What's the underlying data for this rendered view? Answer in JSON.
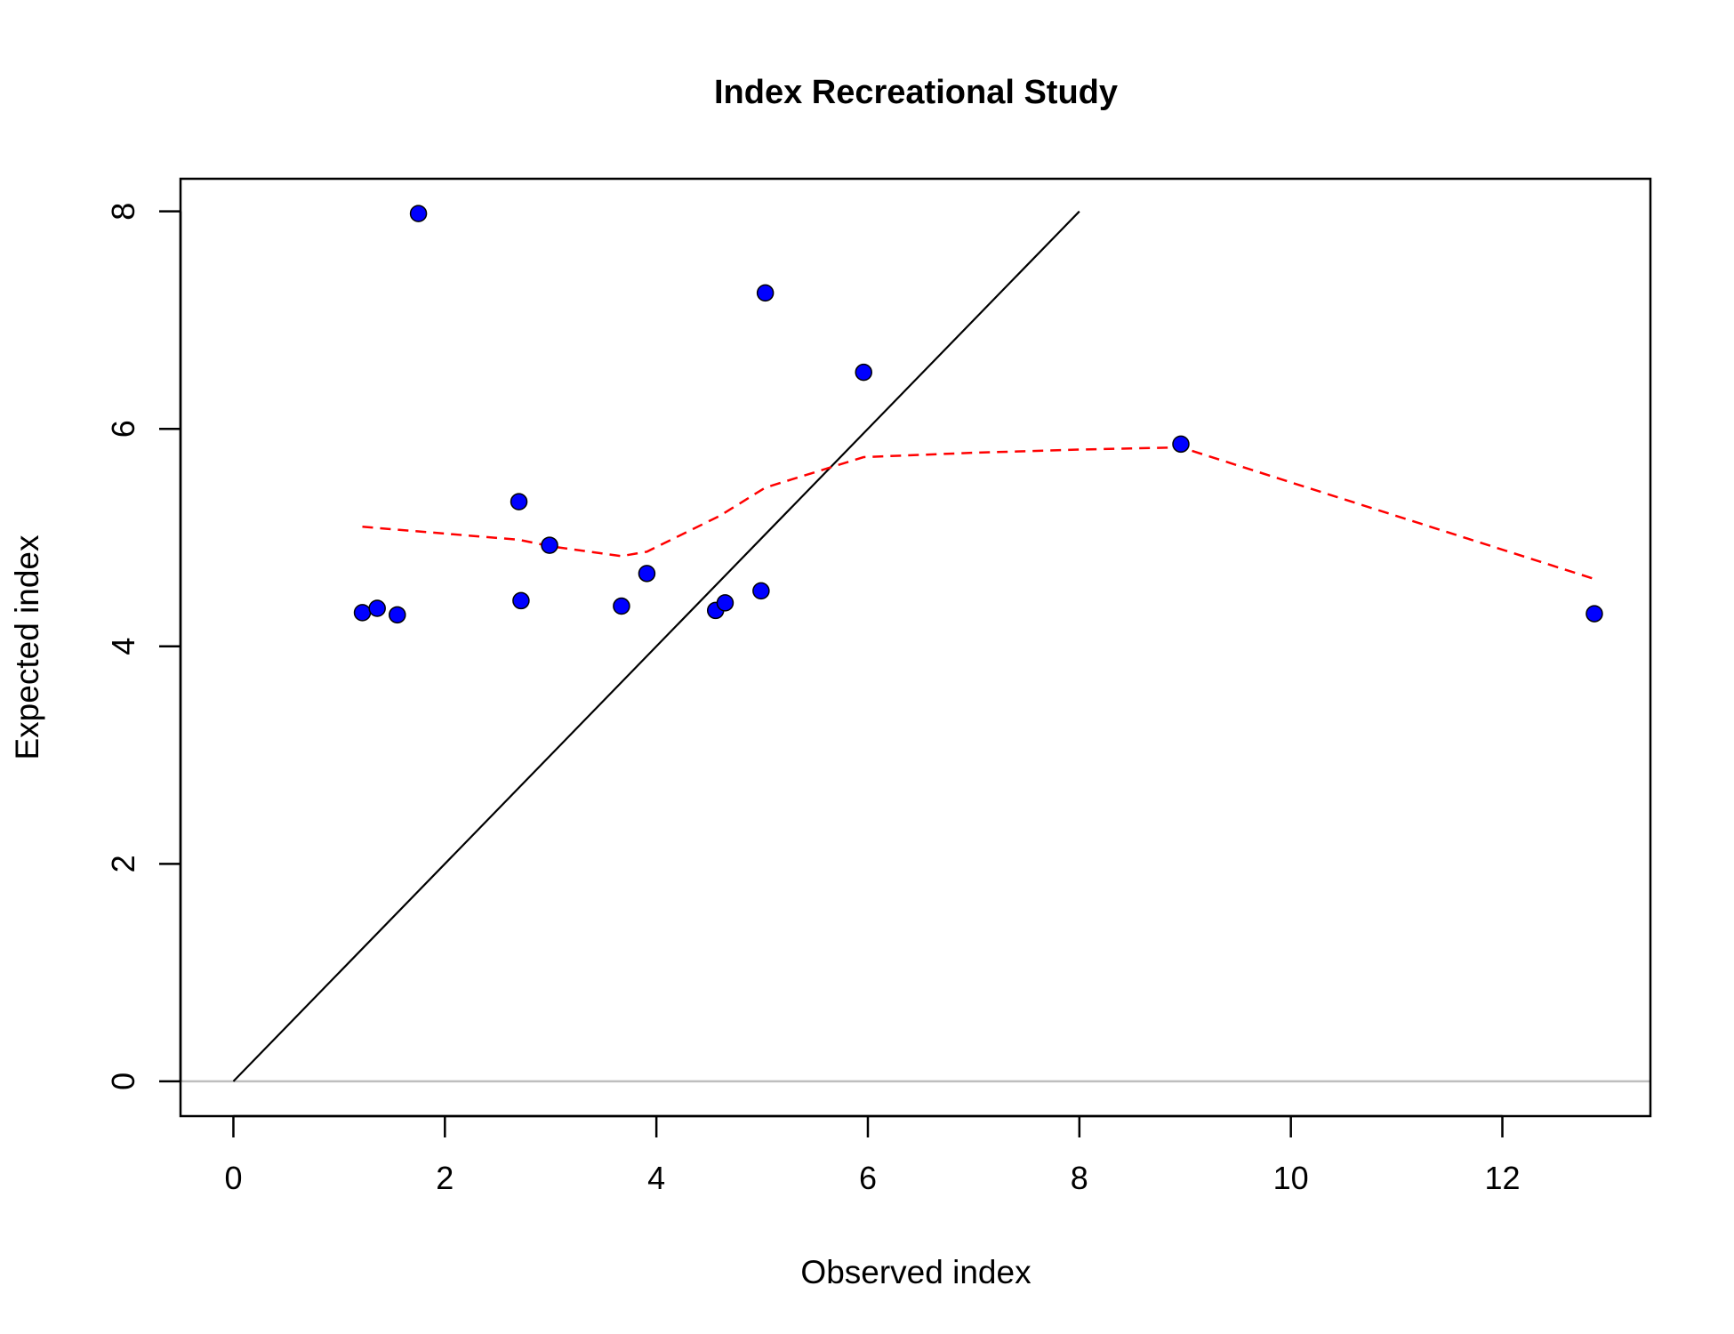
{
  "chart_data": {
    "type": "scatter",
    "title": "Index Recreational Study",
    "xlabel": "Observed index",
    "ylabel": "Expected index",
    "xlim": [
      -0.5,
      13.4
    ],
    "ylim": [
      -0.32,
      8.3
    ],
    "x_ticks": [
      0,
      2,
      4,
      6,
      8,
      10,
      12
    ],
    "y_ticks": [
      0,
      2,
      4,
      6,
      8
    ],
    "grid": false,
    "legend": "none",
    "colors": {
      "points_fill": "#0000ff",
      "points_edge": "#000000",
      "identity_line": "#000000",
      "trend_line": "#ff0000",
      "zero_line": "#bebebe"
    },
    "points": [
      {
        "x": 1.22,
        "y": 4.31
      },
      {
        "x": 1.36,
        "y": 4.35
      },
      {
        "x": 1.55,
        "y": 4.29
      },
      {
        "x": 1.75,
        "y": 7.98
      },
      {
        "x": 2.7,
        "y": 5.33
      },
      {
        "x": 2.72,
        "y": 4.42
      },
      {
        "x": 2.99,
        "y": 4.93
      },
      {
        "x": 3.67,
        "y": 4.37
      },
      {
        "x": 3.91,
        "y": 4.67
      },
      {
        "x": 4.56,
        "y": 4.33
      },
      {
        "x": 4.65,
        "y": 4.4
      },
      {
        "x": 4.99,
        "y": 4.51
      },
      {
        "x": 5.03,
        "y": 7.25
      },
      {
        "x": 5.96,
        "y": 6.52
      },
      {
        "x": 8.96,
        "y": 5.86
      },
      {
        "x": 12.87,
        "y": 4.3
      }
    ],
    "identity_line": {
      "x": [
        0,
        8
      ],
      "y": [
        0,
        8
      ]
    },
    "reference_line_y": 0,
    "trend_line": {
      "style": "dashed",
      "x": [
        1.22,
        2.7,
        3.0,
        3.67,
        3.91,
        4.6,
        5.03,
        5.96,
        7.0,
        8.0,
        8.96,
        12.87
      ],
      "y": [
        5.1,
        4.98,
        4.92,
        4.83,
        4.87,
        5.2,
        5.46,
        5.74,
        5.78,
        5.81,
        5.83,
        4.62
      ]
    }
  }
}
